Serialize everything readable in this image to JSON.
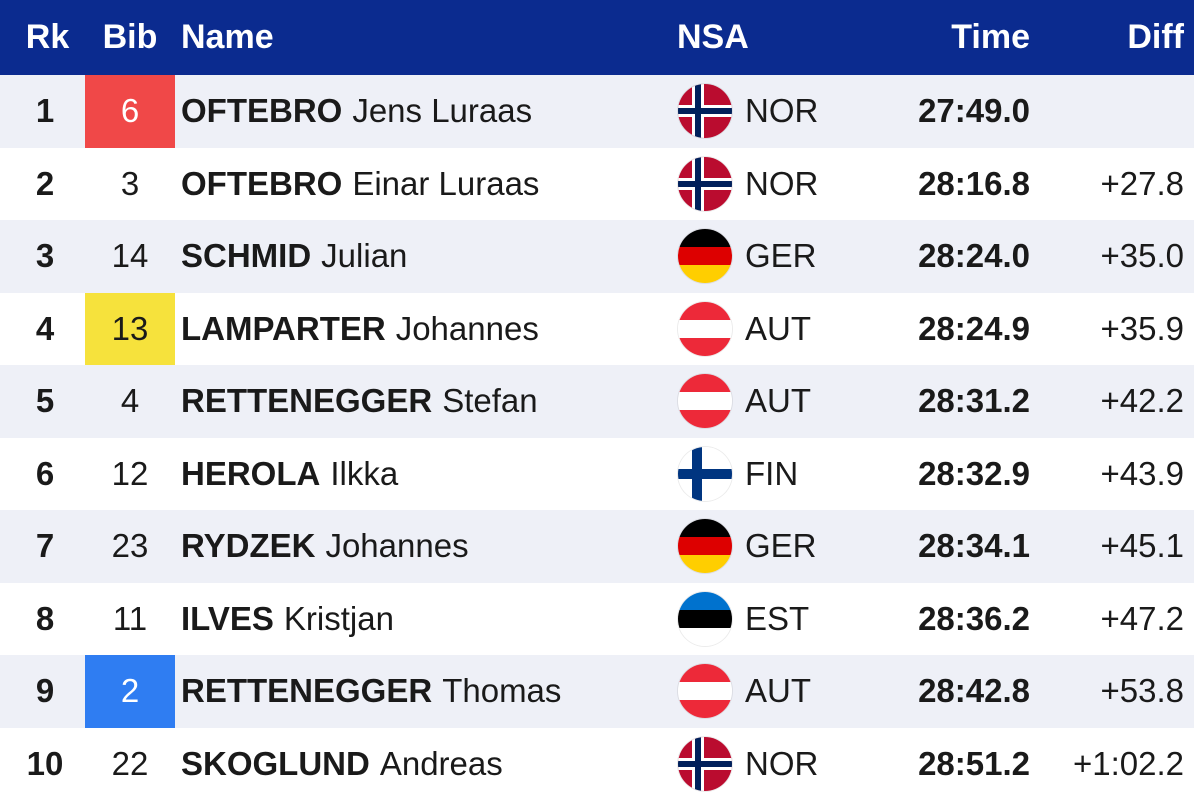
{
  "header": {
    "rk": "Rk",
    "bib": "Bib",
    "name": "Name",
    "nsa": "NSA",
    "time": "Time",
    "diff": "Diff"
  },
  "colors": {
    "header_bg": "#0b2b8f",
    "bib_red": "#f04848",
    "bib_yellow": "#f6e23c",
    "bib_blue": "#2f7df2"
  },
  "rows": [
    {
      "rk": "1",
      "bib": "6",
      "bib_color": "red",
      "surname": "OFTEBRO",
      "given": "Jens Luraas",
      "flag_icon": "nor-flag-icon",
      "nsa": "NOR",
      "time": "27:49.0",
      "diff": ""
    },
    {
      "rk": "2",
      "bib": "3",
      "bib_color": "",
      "surname": "OFTEBRO",
      "given": "Einar Luraas",
      "flag_icon": "nor-flag-icon",
      "nsa": "NOR",
      "time": "28:16.8",
      "diff": "+27.8"
    },
    {
      "rk": "3",
      "bib": "14",
      "bib_color": "",
      "surname": "SCHMID",
      "given": "Julian",
      "flag_icon": "ger-flag-icon",
      "nsa": "GER",
      "time": "28:24.0",
      "diff": "+35.0"
    },
    {
      "rk": "4",
      "bib": "13",
      "bib_color": "yellow",
      "surname": "LAMPARTER",
      "given": "Johannes",
      "flag_icon": "aut-flag-icon",
      "nsa": "AUT",
      "time": "28:24.9",
      "diff": "+35.9"
    },
    {
      "rk": "5",
      "bib": "4",
      "bib_color": "",
      "surname": "RETTENEGGER",
      "given": "Stefan",
      "flag_icon": "aut-flag-icon",
      "nsa": "AUT",
      "time": "28:31.2",
      "diff": "+42.2"
    },
    {
      "rk": "6",
      "bib": "12",
      "bib_color": "",
      "surname": "HEROLA",
      "given": "Ilkka",
      "flag_icon": "fin-flag-icon",
      "nsa": "FIN",
      "time": "28:32.9",
      "diff": "+43.9"
    },
    {
      "rk": "7",
      "bib": "23",
      "bib_color": "",
      "surname": "RYDZEK",
      "given": "Johannes",
      "flag_icon": "ger-flag-icon",
      "nsa": "GER",
      "time": "28:34.1",
      "diff": "+45.1"
    },
    {
      "rk": "8",
      "bib": "11",
      "bib_color": "",
      "surname": "ILVES",
      "given": "Kristjan",
      "flag_icon": "est-flag-icon",
      "nsa": "EST",
      "time": "28:36.2",
      "diff": "+47.2"
    },
    {
      "rk": "9",
      "bib": "2",
      "bib_color": "blue",
      "surname": "RETTENEGGER",
      "given": "Thomas",
      "flag_icon": "aut-flag-icon",
      "nsa": "AUT",
      "time": "28:42.8",
      "diff": "+53.8"
    },
    {
      "rk": "10",
      "bib": "22",
      "bib_color": "",
      "surname": "SKOGLUND",
      "given": "Andreas",
      "flag_icon": "nor-flag-icon",
      "nsa": "NOR",
      "time": "28:51.2",
      "diff": "+1:02.2"
    }
  ]
}
